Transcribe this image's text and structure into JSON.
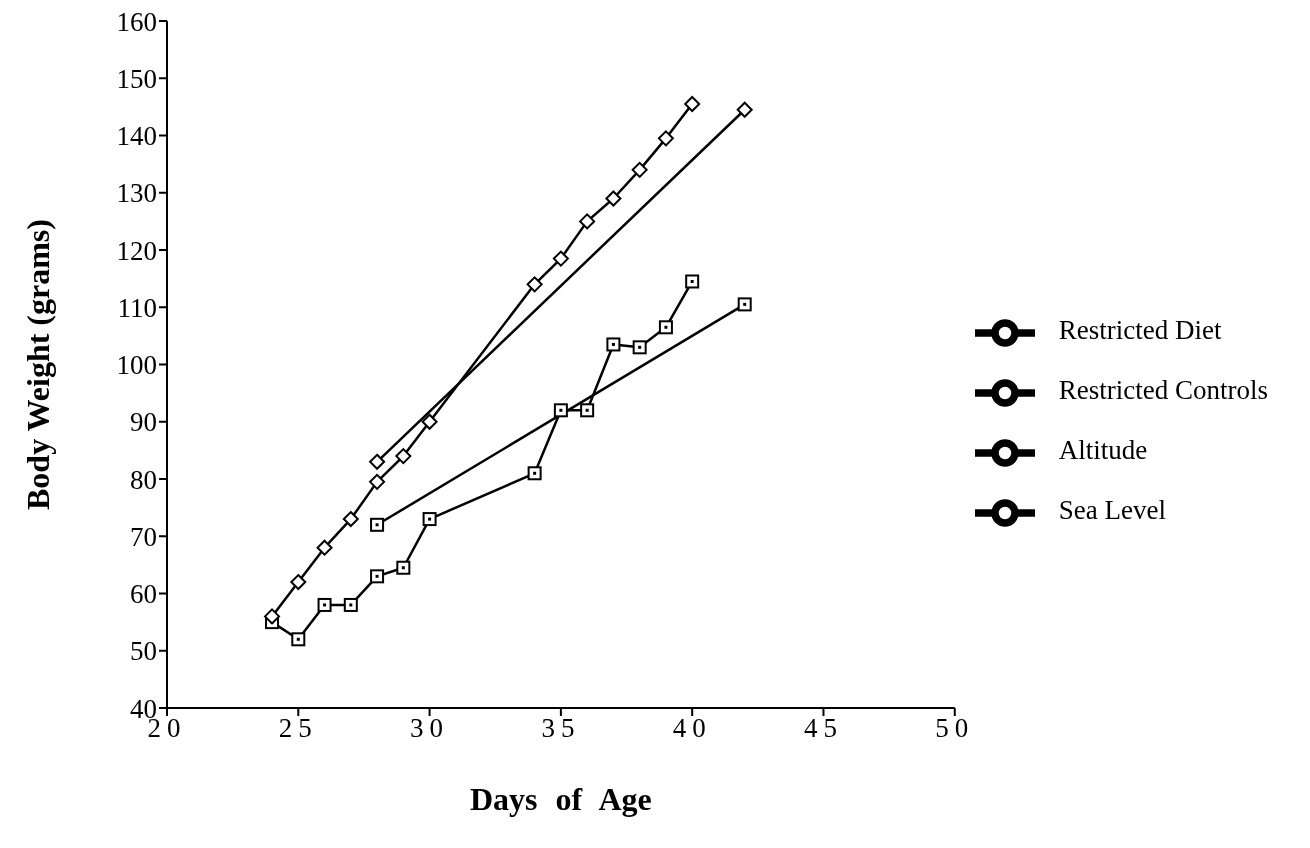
{
  "chart_data": {
    "type": "line",
    "xlabel": "Days of Age",
    "ylabel": "Body  Weight  (grams)",
    "xlim": [
      20,
      50
    ],
    "xticks": [
      20,
      25,
      30,
      35,
      40,
      45,
      50
    ],
    "ylim": [
      40,
      160
    ],
    "yticks": [
      40,
      50,
      60,
      70,
      80,
      90,
      100,
      110,
      120,
      130,
      140,
      150,
      160
    ],
    "legend": "right",
    "grid": false,
    "series": [
      {
        "name": "Restricted Diet",
        "color": "#000000",
        "marker": "square",
        "x": [
          24,
          25,
          26,
          27,
          28,
          29,
          30,
          34,
          35,
          36,
          37,
          38,
          39,
          40
        ],
        "values": [
          55,
          52,
          58,
          58,
          63,
          64.5,
          73,
          81,
          92,
          92,
          103.5,
          103,
          106.5,
          114.5
        ]
      },
      {
        "name": "Restricted Controls",
        "color": "#000000",
        "marker": "diamond",
        "x": [
          24,
          25,
          26,
          27,
          28,
          29,
          30,
          34,
          35,
          36,
          37,
          38,
          39,
          40
        ],
        "values": [
          56,
          62,
          68,
          73,
          79.5,
          84,
          90,
          114,
          118.5,
          125,
          129,
          134,
          139.5,
          145.5
        ]
      },
      {
        "name": "Altitude",
        "color": "#000000",
        "marker": "square",
        "x": [
          28,
          42
        ],
        "values": [
          72,
          110.5
        ]
      },
      {
        "name": "Sea Level",
        "color": "#000000",
        "marker": "diamond",
        "x": [
          28,
          42
        ],
        "values": [
          83,
          144.5
        ]
      }
    ]
  }
}
